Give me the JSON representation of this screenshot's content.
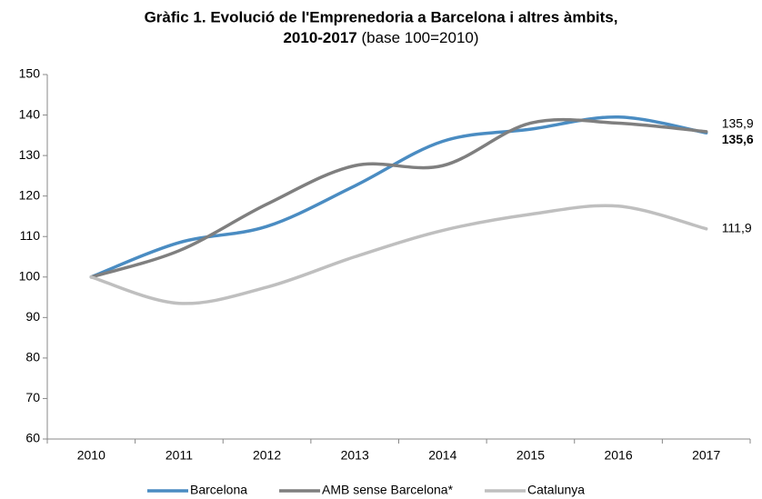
{
  "chart_data": {
    "type": "line",
    "title": [
      "Gràfic 1. Evolució de l'Emprenedoria a Barcelona i altres àmbits,",
      "2010-2017"
    ],
    "subtitle": "(base 100=2010)",
    "categories": [
      "2010",
      "2011",
      "2012",
      "2013",
      "2014",
      "2015",
      "2016",
      "2017"
    ],
    "series": [
      {
        "name": "Barcelona",
        "color": "#4a8cc2",
        "values": [
          100,
          108.5,
          112.5,
          122.5,
          133.5,
          136.5,
          139.5,
          135.6
        ],
        "value_labels": [
          null,
          null,
          null,
          null,
          null,
          null,
          null,
          "135,6"
        ]
      },
      {
        "name": "AMB sense Barcelona*",
        "color": "#7f7f7f",
        "values": [
          100,
          106.5,
          118,
          127.5,
          127.5,
          138,
          138,
          135.9
        ],
        "value_labels": [
          null,
          null,
          null,
          null,
          null,
          null,
          null,
          "135,9"
        ]
      },
      {
        "name": "Catalunya",
        "color": "#bfbfbf",
        "values": [
          100,
          93.5,
          97.5,
          105,
          111.5,
          115.5,
          117.5,
          111.9
        ],
        "value_labels": [
          null,
          null,
          null,
          null,
          null,
          null,
          null,
          "111,9"
        ]
      }
    ],
    "ylim": [
      60,
      150
    ],
    "yticks": [
      60,
      70,
      80,
      90,
      100,
      110,
      120,
      130,
      140,
      150
    ],
    "grid": false,
    "legend": "bottom"
  }
}
